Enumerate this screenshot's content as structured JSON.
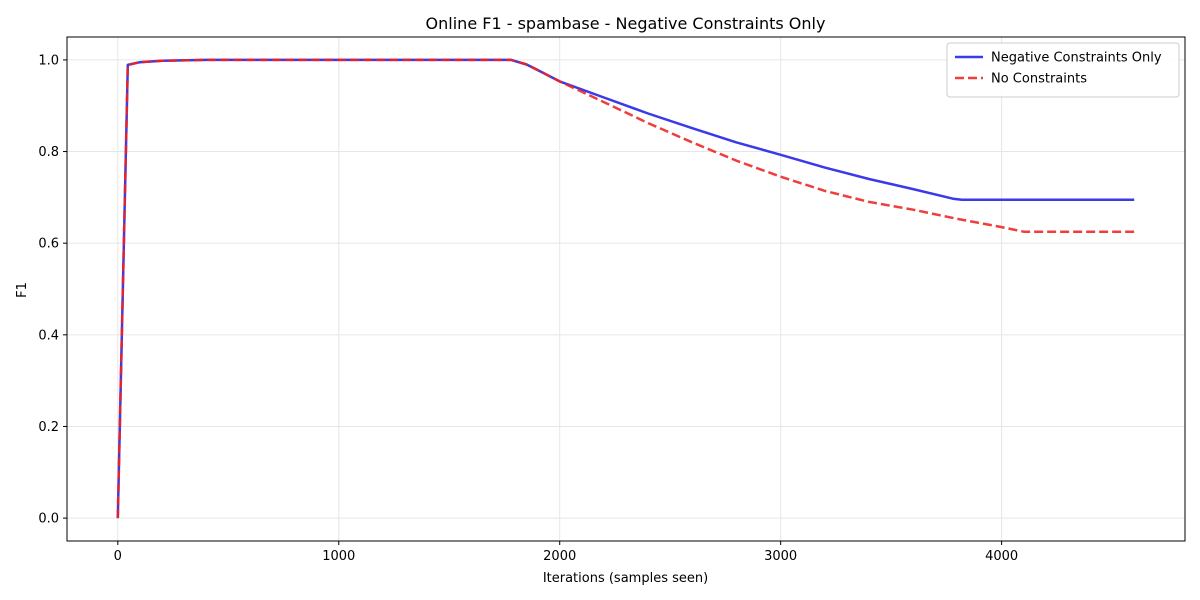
{
  "chart_data": {
    "type": "line",
    "title": "Online F1 - spambase - Negative Constraints Only",
    "xlabel": "Iterations (samples seen)",
    "ylabel": "F1",
    "xlim": [
      -230,
      4830
    ],
    "ylim": [
      -0.05,
      1.05
    ],
    "x_ticks": [
      0,
      1000,
      2000,
      3000,
      4000
    ],
    "x_tick_labels": [
      "0",
      "1000",
      "2000",
      "3000",
      "4000"
    ],
    "y_ticks": [
      0.0,
      0.2,
      0.4,
      0.6,
      0.8,
      1.0
    ],
    "y_tick_labels": [
      "0.0",
      "0.2",
      "0.4",
      "0.6",
      "0.8",
      "1.0"
    ],
    "grid": true,
    "legend_position": "top-right",
    "series": [
      {
        "name": "Negative Constraints Only",
        "color": "#1f1fe6",
        "style": "solid",
        "x": [
          0,
          45,
          100,
          200,
          400,
          1000,
          1780,
          1850,
          1900,
          2000,
          2200,
          2400,
          2600,
          2800,
          3000,
          3200,
          3400,
          3600,
          3780,
          3820,
          4000,
          4200,
          4400,
          4600
        ],
        "y": [
          0.0,
          0.989,
          0.995,
          0.998,
          1.0,
          1.0,
          1.0,
          0.99,
          0.978,
          0.953,
          0.918,
          0.883,
          0.851,
          0.82,
          0.793,
          0.765,
          0.74,
          0.718,
          0.697,
          0.695,
          0.695,
          0.695,
          0.695,
          0.695
        ]
      },
      {
        "name": "No Constraints",
        "color": "#ee2222",
        "style": "dashed",
        "x": [
          0,
          45,
          100,
          200,
          400,
          1000,
          1780,
          1850,
          1900,
          2000,
          2200,
          2400,
          2600,
          2800,
          3000,
          3200,
          3400,
          3600,
          3800,
          4000,
          4100,
          4300,
          4600
        ],
        "y": [
          0.0,
          0.989,
          0.995,
          0.998,
          1.0,
          1.0,
          1.0,
          0.99,
          0.978,
          0.953,
          0.908,
          0.862,
          0.82,
          0.78,
          0.745,
          0.714,
          0.69,
          0.673,
          0.653,
          0.635,
          0.625,
          0.625,
          0.625
        ]
      }
    ]
  }
}
